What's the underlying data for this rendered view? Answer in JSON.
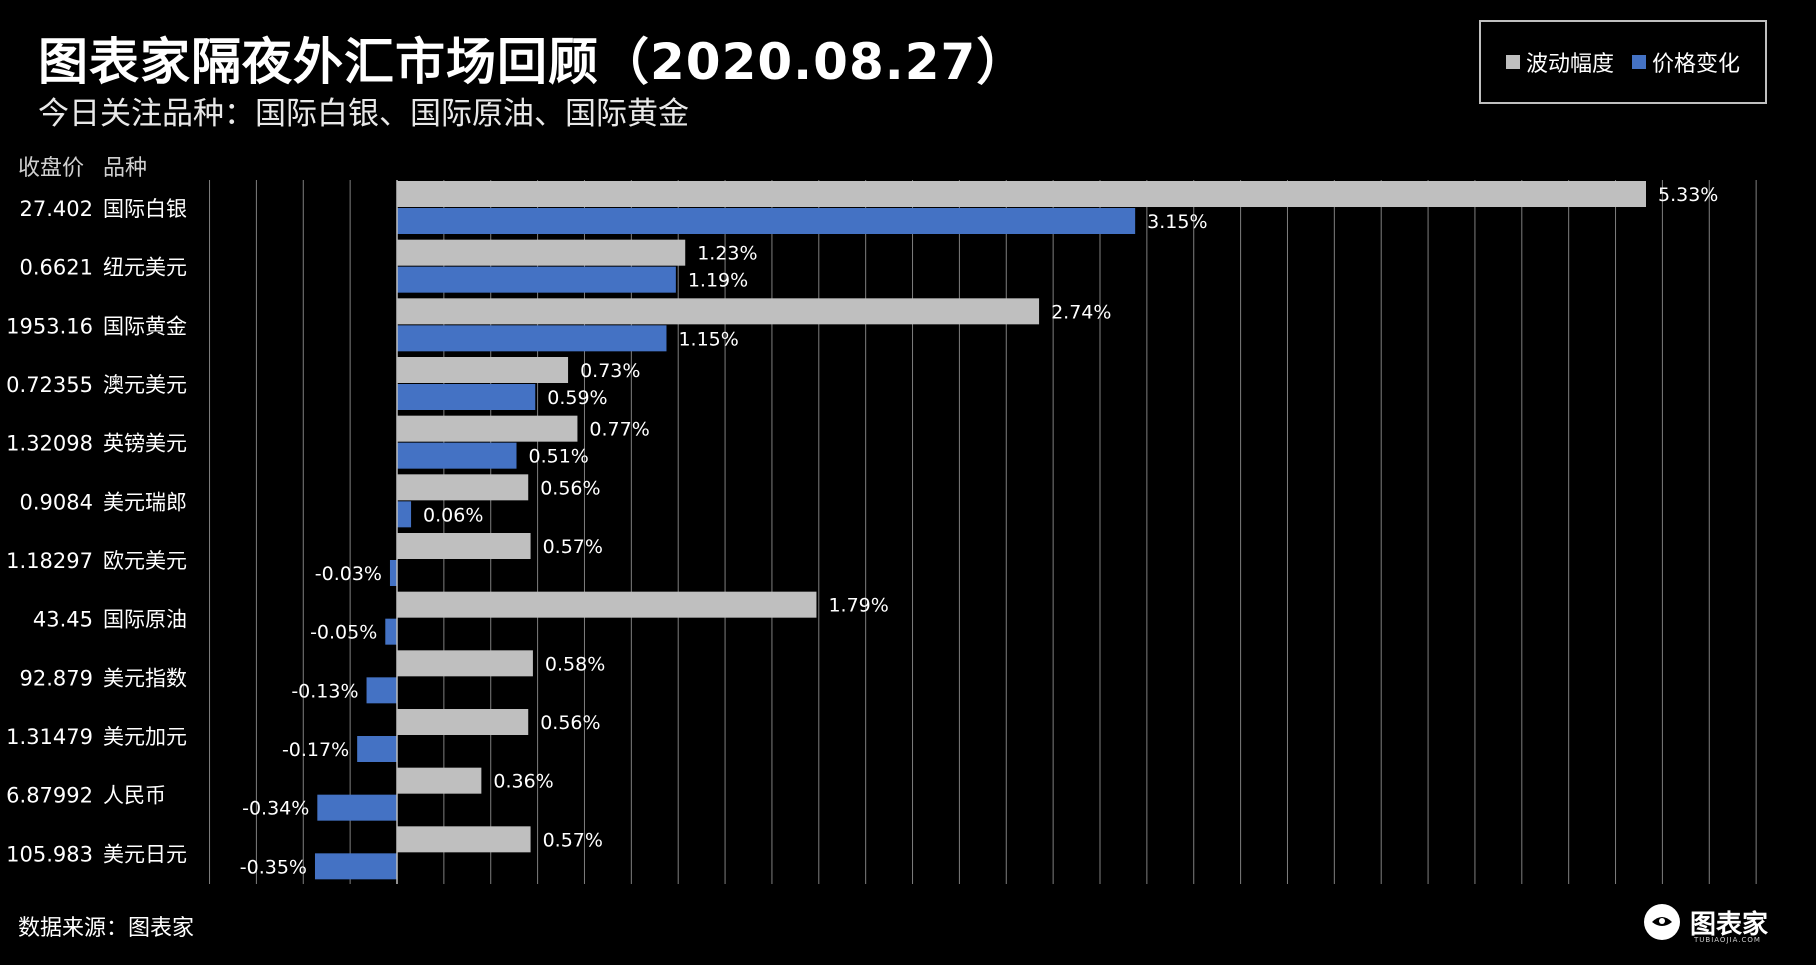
{
  "title": "图表家隔夜外汇市场回顾（2020.08.27）",
  "subtitle": "今日关注品种：国际白银、国际原油、国际黄金",
  "header": {
    "price_label": "收盘价",
    "name_label": "品种"
  },
  "legend": {
    "range_label": "波动幅度",
    "change_label": "价格变化"
  },
  "colors": {
    "range": "#bfbfbf",
    "change": "#4472c4",
    "grid": "#7f7f7f"
  },
  "source": "数据来源：图表家",
  "logo": {
    "text": "图表家",
    "subtext": "TUBIAOJIA.COM",
    "icon": "logo-head-icon"
  },
  "chart_data": {
    "type": "bar",
    "orientation": "horizontal",
    "categories": [
      "国际白银",
      "纽元美元",
      "国际黄金",
      "澳元美元",
      "英镑美元",
      "美元瑞郎",
      "欧元美元",
      "国际原油",
      "美元指数",
      "美元加元",
      "人民币",
      "美元日元"
    ],
    "close_prices": [
      "27.402",
      "0.6621",
      "1953.16",
      "0.72355",
      "1.32098",
      "0.9084",
      "1.18297",
      "43.45",
      "92.879",
      "1.31479",
      "6.87992",
      "105.983"
    ],
    "series": [
      {
        "name": "波动幅度",
        "values": [
          5.33,
          1.23,
          2.74,
          0.73,
          0.77,
          0.56,
          0.57,
          1.79,
          0.58,
          0.56,
          0.36,
          0.57
        ],
        "labels": [
          "5.33%",
          "1.23%",
          "2.74%",
          "0.73%",
          "0.77%",
          "0.56%",
          "0.57%",
          "1.79%",
          "0.58%",
          "0.56%",
          "0.36%",
          "0.57%"
        ]
      },
      {
        "name": "价格变化",
        "values": [
          3.15,
          1.19,
          1.15,
          0.59,
          0.51,
          0.06,
          -0.03,
          -0.05,
          -0.13,
          -0.17,
          -0.34,
          -0.35
        ],
        "labels": [
          "3.15%",
          "1.19%",
          "1.15%",
          "0.59%",
          "0.51%",
          "0.06%",
          "-0.03%",
          "-0.05%",
          "-0.13%",
          "-0.17%",
          "-0.34%",
          "-0.35%"
        ]
      }
    ],
    "xlim": [
      -0.8,
      5.8
    ],
    "grid": true,
    "legend_position": "top-right"
  }
}
